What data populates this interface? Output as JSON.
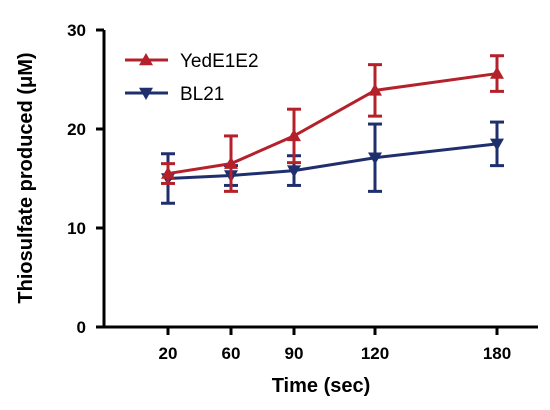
{
  "chart_data": {
    "type": "line",
    "xlabel": "Time (sec)",
    "ylabel": "Thiosulfate produced (μM)",
    "categories": [
      "20",
      "60",
      "90",
      "120",
      "180"
    ],
    "ylim": [
      0,
      30
    ],
    "yticks": [
      "0",
      "10",
      "20",
      "30"
    ],
    "grid": false,
    "legend_position": "top-left",
    "series": [
      {
        "name": "YedE1E2",
        "color": "#b5212b",
        "marker": "triangle-up",
        "values": [
          15.5,
          16.5,
          19.3,
          23.9,
          25.6
        ],
        "errors": [
          1.0,
          2.8,
          2.7,
          2.6,
          1.8
        ]
      },
      {
        "name": "BL21",
        "color": "#1f2f6e",
        "marker": "triangle-down",
        "values": [
          15.0,
          15.3,
          15.8,
          17.1,
          18.5
        ],
        "errors": [
          2.5,
          1.0,
          1.5,
          3.4,
          2.2
        ]
      }
    ]
  }
}
